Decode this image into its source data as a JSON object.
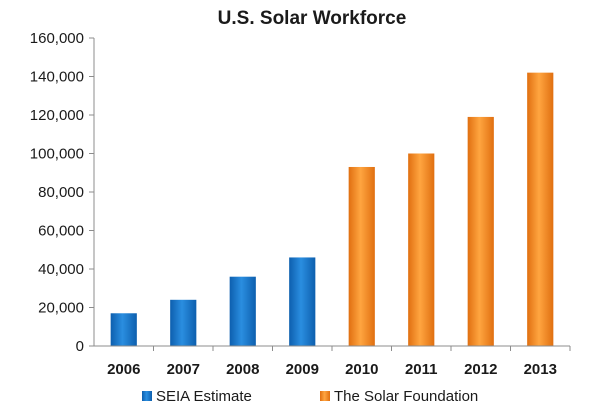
{
  "chart_data": {
    "type": "bar",
    "title": "U.S. Solar Workforce",
    "categories": [
      "2006",
      "2007",
      "2008",
      "2009",
      "2010",
      "2011",
      "2012",
      "2013"
    ],
    "series": [
      {
        "name": "SEIA Estimate",
        "color": "#1a74c4",
        "values": [
          17000,
          24000,
          36000,
          46000,
          null,
          null,
          null,
          null
        ]
      },
      {
        "name": "The Solar Foundation",
        "color": "#f28a1e",
        "values": [
          null,
          null,
          null,
          null,
          93000,
          100000,
          119000,
          142000
        ]
      }
    ],
    "yticks": [
      "0",
      "20,000",
      "40,000",
      "60,000",
      "80,000",
      "100,000",
      "120,000",
      "140,000",
      "160,000"
    ],
    "ylim": [
      0,
      160000
    ],
    "grid": false,
    "legend_position": "bottom"
  }
}
